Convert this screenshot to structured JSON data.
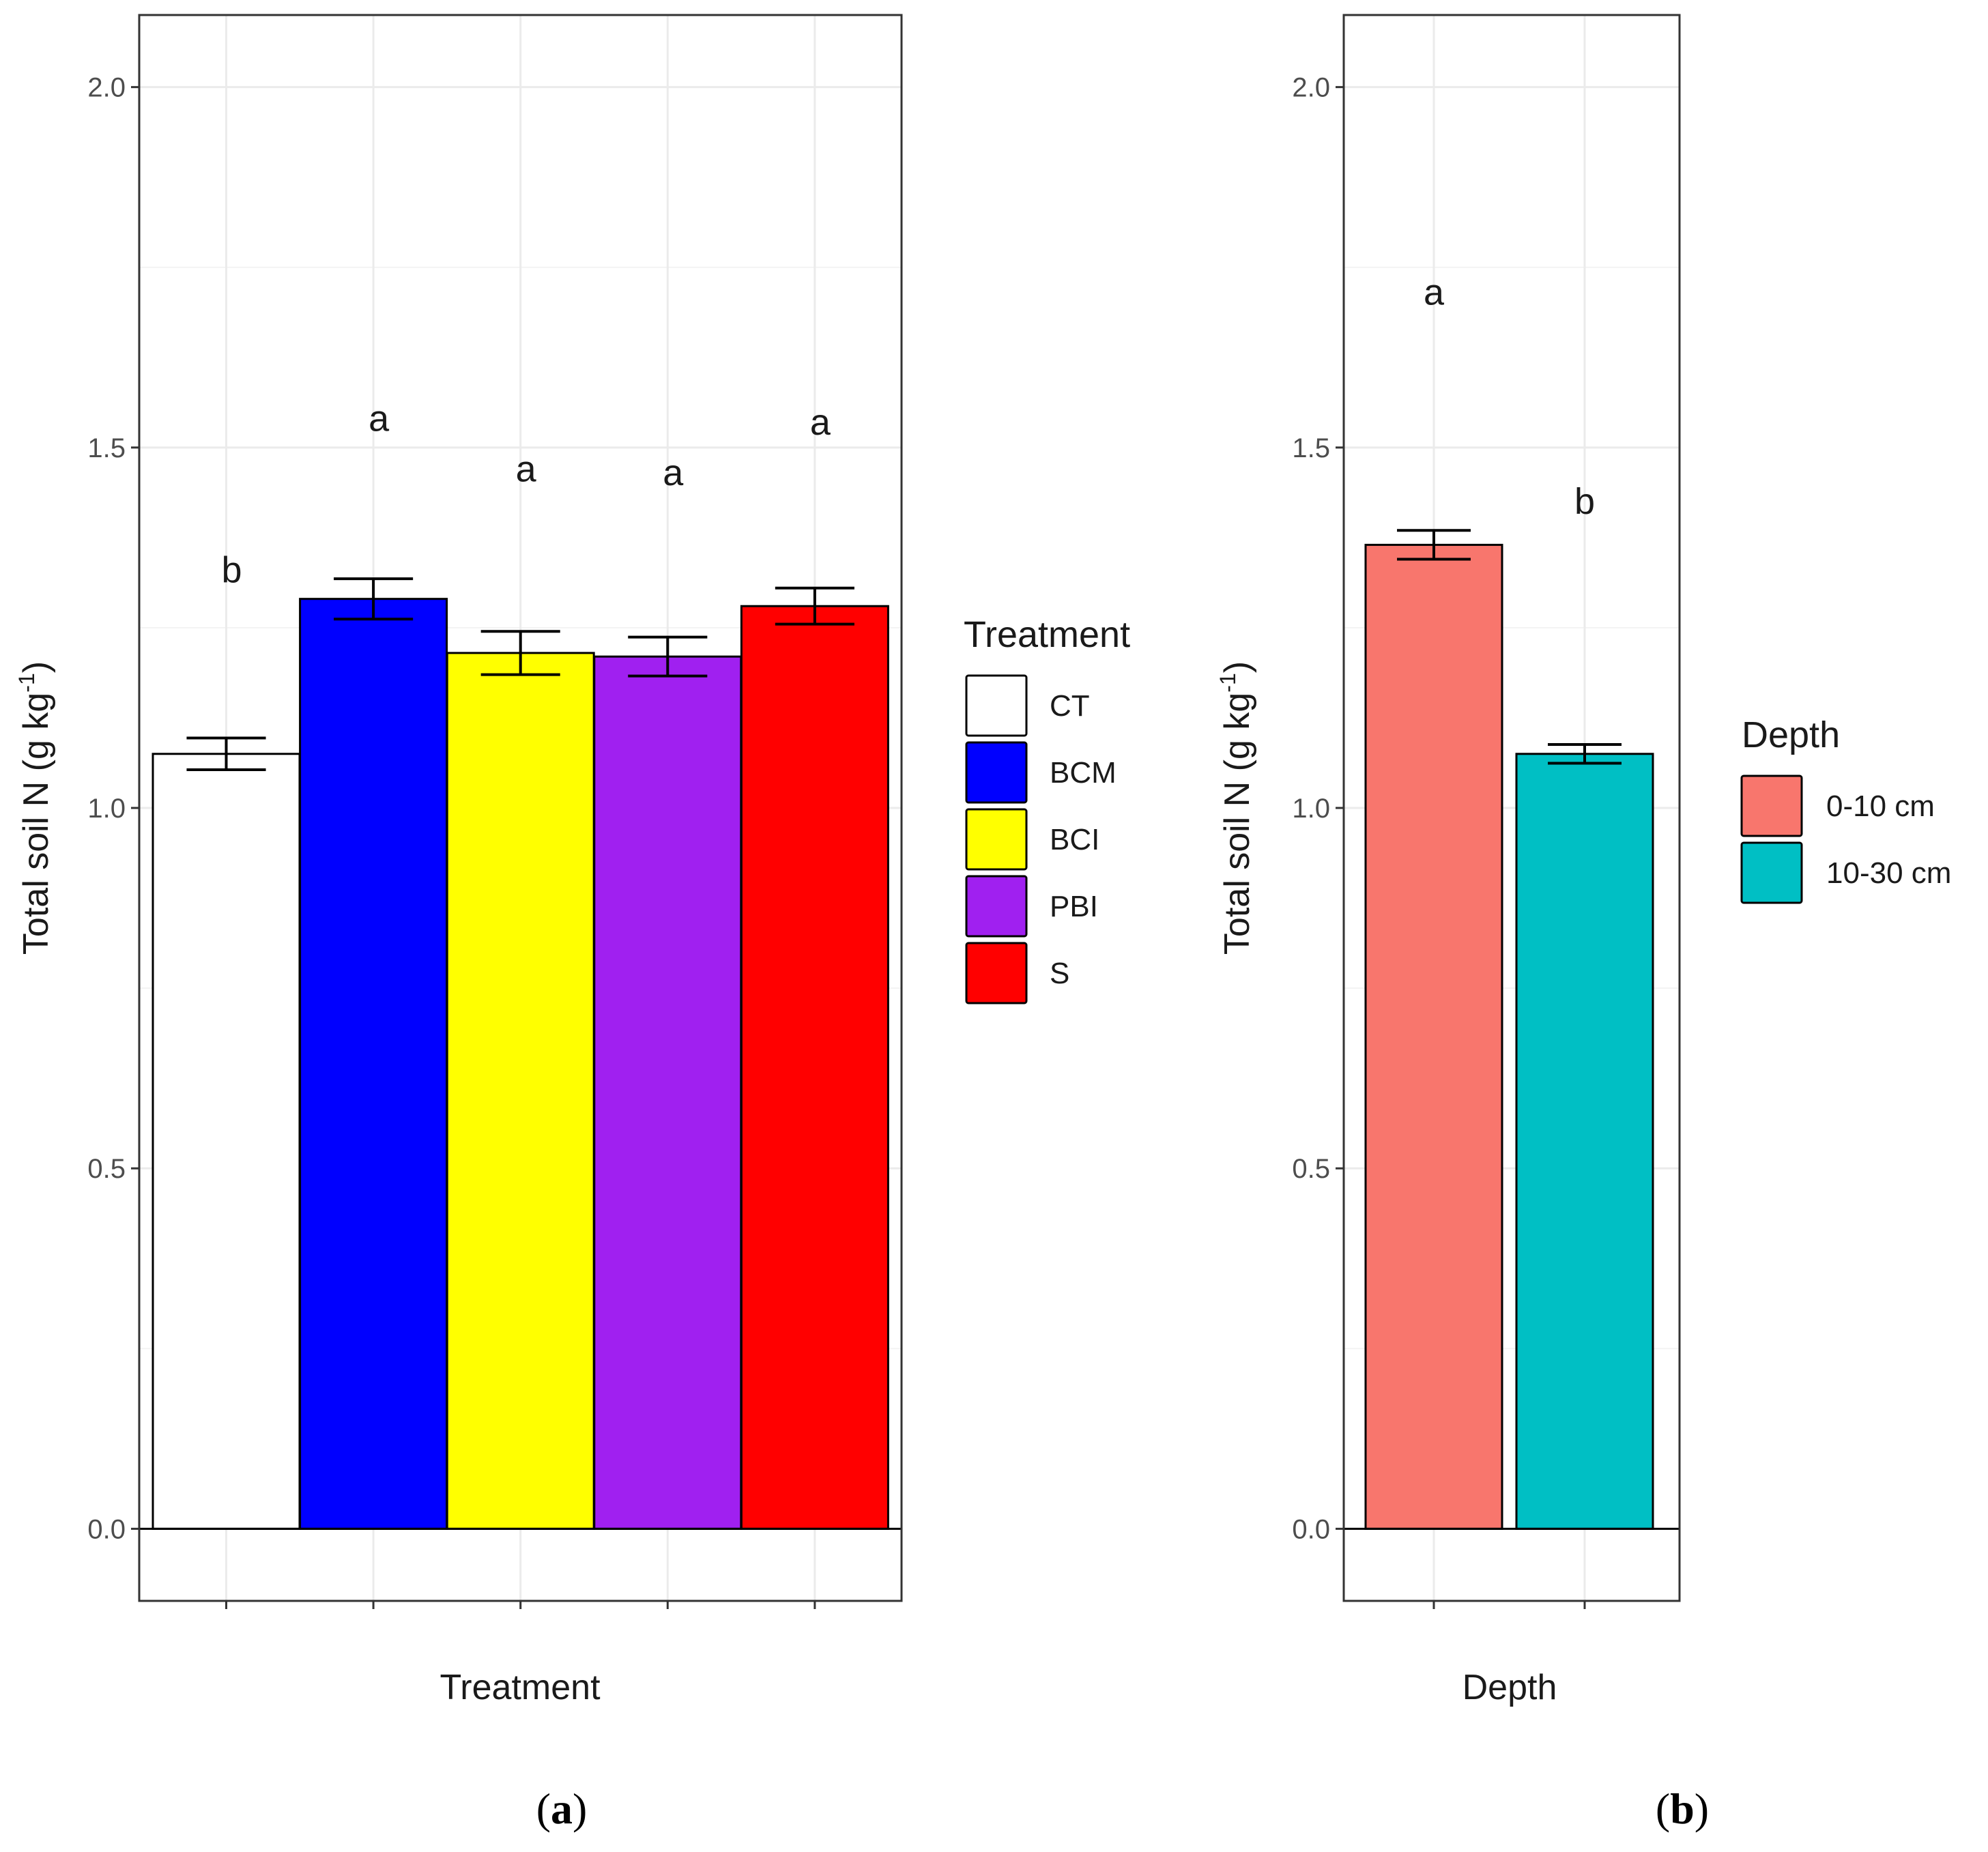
{
  "chart_data": [
    {
      "type": "bar",
      "title": "",
      "xlabel": "Treatment",
      "ylabel": "Total soil N (g kg",
      "ylabel_sup": "-1",
      "ylabel_close": ")",
      "ylim": [
        -0.1,
        2.1
      ],
      "yticks": [
        "0.0",
        "0.5",
        "1.0",
        "1.5",
        "2.0"
      ],
      "yticks_values": [
        0.0,
        0.5,
        1.0,
        1.5,
        2.0
      ],
      "categories": [
        "CT",
        "BCM",
        "BCI",
        "PBI",
        "S"
      ],
      "values": [
        1.075,
        1.29,
        1.215,
        1.21,
        1.28
      ],
      "errors": [
        0.022,
        0.028,
        0.03,
        0.027,
        0.025
      ],
      "colors": [
        "#FFFFFF",
        "#0000FF",
        "#FFFF00",
        "#A020F0",
        "#FF0000"
      ],
      "significance": [
        "b",
        "a",
        "a",
        "a",
        "a"
      ],
      "significance_y": [
        1.33,
        1.54,
        1.47,
        1.465,
        1.535
      ],
      "legend": {
        "title": "Treatment",
        "entries": [
          "CT",
          "BCM",
          "BCI",
          "PBI",
          "S"
        ],
        "position": "right"
      },
      "grid": true,
      "caption_open": "(",
      "caption_letter": "a",
      "caption_close": ")"
    },
    {
      "type": "bar",
      "title": "",
      "xlabel": "Depth",
      "ylabel": "Total soil N (g kg",
      "ylabel_sup": "-1",
      "ylabel_close": ")",
      "ylim": [
        -0.1,
        2.1
      ],
      "yticks": [
        "0.0",
        "0.5",
        "1.0",
        "1.5",
        "2.0"
      ],
      "yticks_values": [
        0.0,
        0.5,
        1.0,
        1.5,
        2.0
      ],
      "categories": [
        "0-10 cm",
        "10-30 cm"
      ],
      "values": [
        1.365,
        1.075
      ],
      "errors": [
        0.02,
        0.013
      ],
      "colors": [
        "#F8766D",
        "#00BFC4"
      ],
      "significance": [
        "a",
        "b"
      ],
      "significance_y": [
        1.715,
        1.425
      ],
      "legend": {
        "title": "Depth",
        "entries": [
          "0-10 cm",
          "10-30 cm"
        ],
        "position": "right"
      },
      "grid": true,
      "caption_open": "(",
      "caption_letter": "b",
      "caption_close": ")"
    }
  ]
}
